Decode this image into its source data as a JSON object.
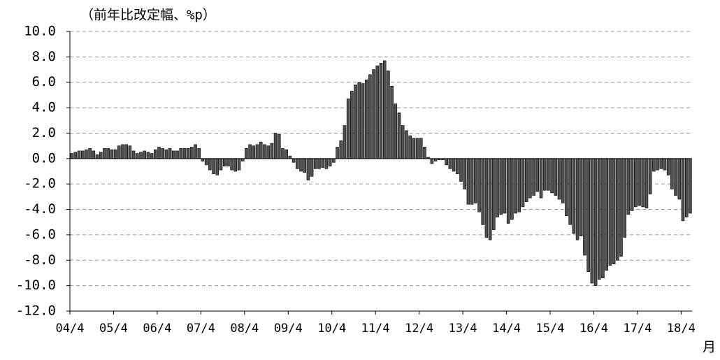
{
  "chart_data": {
    "type": "bar",
    "y_label": "（前年比改定幅、%p）",
    "x_label": "月",
    "color": "#505050",
    "edge_color": "#000000",
    "negative_tick_color": "#ff0000",
    "grid": true,
    "ylim": [
      -12,
      10
    ],
    "yticks": [
      {
        "value": 10,
        "label": "10.0"
      },
      {
        "value": 8,
        "label": "8.0"
      },
      {
        "value": 6,
        "label": "6.0"
      },
      {
        "value": 4,
        "label": "4.0"
      },
      {
        "value": 2,
        "label": "2.0"
      },
      {
        "value": 0,
        "label": "0.0"
      },
      {
        "value": -2,
        "label": "-2.0"
      },
      {
        "value": -4,
        "label": "-4.0"
      },
      {
        "value": -6,
        "label": "-6.0"
      },
      {
        "value": -8,
        "label": "-8.0"
      },
      {
        "value": -10,
        "label": "-10.0"
      },
      {
        "value": -12,
        "label": "-12.0"
      }
    ],
    "categories": [
      "04/4",
      null,
      null,
      null,
      null,
      null,
      null,
      null,
      null,
      null,
      null,
      null,
      "05/4",
      null,
      null,
      null,
      null,
      null,
      null,
      null,
      null,
      null,
      null,
      null,
      "06/4",
      null,
      null,
      null,
      null,
      null,
      null,
      null,
      null,
      null,
      null,
      null,
      "07/4",
      null,
      null,
      null,
      null,
      null,
      null,
      null,
      null,
      null,
      null,
      null,
      "08/4",
      null,
      null,
      null,
      null,
      null,
      null,
      null,
      null,
      null,
      null,
      null,
      "09/4",
      null,
      null,
      null,
      null,
      null,
      null,
      null,
      null,
      null,
      null,
      null,
      "10/4",
      null,
      null,
      null,
      null,
      null,
      null,
      null,
      null,
      null,
      null,
      null,
      "11/4",
      null,
      null,
      null,
      null,
      null,
      null,
      null,
      null,
      null,
      null,
      null,
      "12/4",
      null,
      null,
      null,
      null,
      null,
      null,
      null,
      null,
      null,
      null,
      null,
      "13/4",
      null,
      null,
      null,
      null,
      null,
      null,
      null,
      null,
      null,
      null,
      null,
      "14/4",
      null,
      null,
      null,
      null,
      null,
      null,
      null,
      null,
      null,
      null,
      null,
      "15/4",
      null,
      null,
      null,
      null,
      null,
      null,
      null,
      null,
      null,
      null,
      null,
      "16/4",
      null,
      null,
      null,
      null,
      null,
      null,
      null,
      null,
      null,
      null,
      null,
      "17/4",
      null,
      null,
      null,
      null,
      null,
      null,
      null,
      null,
      null,
      null,
      null,
      "18/4",
      null,
      null
    ],
    "values": [
      0.4,
      0.5,
      0.6,
      0.6,
      0.7,
      0.8,
      0.6,
      0.3,
      0.5,
      0.8,
      0.8,
      0.7,
      0.7,
      1.0,
      1.1,
      1.1,
      1.0,
      0.6,
      0.4,
      0.5,
      0.6,
      0.5,
      0.4,
      0.7,
      0.9,
      0.8,
      0.7,
      0.8,
      0.6,
      0.6,
      0.8,
      0.8,
      0.8,
      0.9,
      1.1,
      0.8,
      -0.2,
      -0.5,
      -0.9,
      -1.2,
      -1.3,
      -0.9,
      -0.6,
      -0.6,
      -0.9,
      -1.0,
      -0.9,
      -0.2,
      0.8,
      1.1,
      1.0,
      1.1,
      1.3,
      1.1,
      1.0,
      1.2,
      2.0,
      1.9,
      0.8,
      0.7,
      0.2,
      -0.3,
      -0.8,
      -1.0,
      -1.1,
      -1.7,
      -1.4,
      -0.8,
      -0.8,
      -0.7,
      -0.8,
      -0.6,
      -0.3,
      0.9,
      1.4,
      2.6,
      4.7,
      5.3,
      5.8,
      6.0,
      5.9,
      6.2,
      6.6,
      7.0,
      7.3,
      7.5,
      7.7,
      6.9,
      5.7,
      4.3,
      3.6,
      2.6,
      2.2,
      1.8,
      1.6,
      1.6,
      1.6,
      0.9,
      0.1,
      -0.4,
      -0.2,
      -0.1,
      -0.1,
      -0.5,
      -0.8,
      -1.0,
      -1.2,
      -1.8,
      -2.4,
      -3.6,
      -3.6,
      -3.5,
      -4.2,
      -5.2,
      -6.2,
      -6.4,
      -5.6,
      -4.6,
      -4.4,
      -4.3,
      -5.1,
      -4.8,
      -4.3,
      -4.2,
      -3.8,
      -3.4,
      -3.1,
      -2.9,
      -2.6,
      -3.1,
      -2.5,
      -2.5,
      -2.7,
      -2.9,
      -3.2,
      -3.5,
      -4.5,
      -5.2,
      -5.9,
      -6.4,
      -6.1,
      -7.6,
      -8.9,
      -9.8,
      -10.0,
      -9.5,
      -9.4,
      -8.8,
      -8.4,
      -8.3,
      -8.0,
      -7.7,
      -6.2,
      -4.4,
      -4.1,
      -3.8,
      -3.7,
      -3.8,
      -3.9,
      -2.8,
      -1.0,
      -0.9,
      -0.8,
      -0.9,
      -1.3,
      -2.4,
      -2.9,
      -3.2,
      -4.9,
      -4.6,
      -4.3
    ]
  }
}
